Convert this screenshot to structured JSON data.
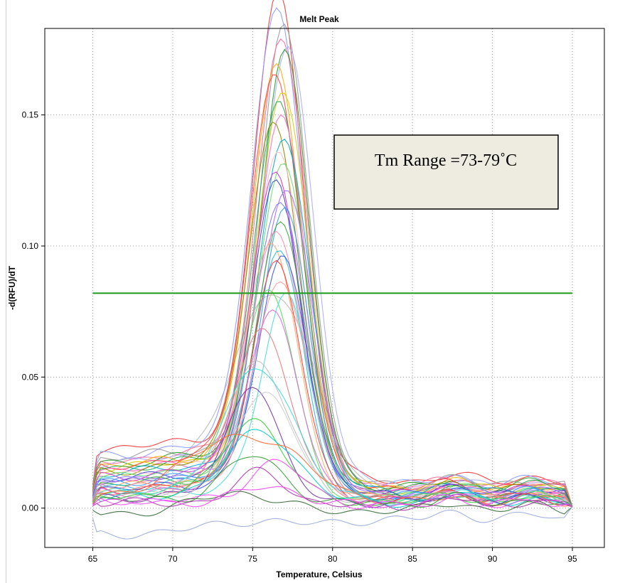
{
  "chart_data": {
    "type": "line",
    "title": "Melt Peak",
    "xlabel": "Temperature, Celsius",
    "ylabel": "-d(RFU)/dT",
    "xlim": [
      62,
      97
    ],
    "ylim": [
      -0.015,
      0.183
    ],
    "x_ticks": [
      {
        "value": 65,
        "label": "65"
      },
      {
        "value": 70,
        "label": "70"
      },
      {
        "value": 75,
        "label": "75"
      },
      {
        "value": 80,
        "label": "80"
      },
      {
        "value": 85,
        "label": "85"
      },
      {
        "value": 90,
        "label": "90"
      },
      {
        "value": 95,
        "label": "95"
      }
    ],
    "y_ticks": [
      {
        "value": 0.0,
        "label": "0.00"
      },
      {
        "value": 0.05,
        "label": "0.05"
      },
      {
        "value": 0.1,
        "label": "0.10"
      },
      {
        "value": 0.15,
        "label": "0.15"
      }
    ],
    "grid": true,
    "threshold": {
      "value": 0.082,
      "x_range": [
        65,
        95
      ],
      "color": "#1a9a1a"
    },
    "annotation": {
      "text": "Tm Range =73-79˚C"
    },
    "background": {
      "color": "#b7b7b7",
      "peak": 76.3,
      "width": 2.5,
      "height": 0.07
    },
    "curves": [
      {
        "peak": 76.6,
        "height": 0.173,
        "width": 1.5,
        "base": 0.022,
        "step": 0.004,
        "color": "#ee3333"
      },
      {
        "peak": 76.5,
        "height": 0.168,
        "width": 1.6,
        "base": 0.02,
        "step": 0.003,
        "color": "#8899ff"
      },
      {
        "peak": 77.0,
        "height": 0.164,
        "width": 1.5,
        "base": 0.019,
        "step": 0.003,
        "color": "#999999"
      },
      {
        "peak": 76.8,
        "height": 0.16,
        "width": 1.55,
        "base": 0.018,
        "step": 0.003,
        "color": "#ff6699"
      },
      {
        "peak": 77.2,
        "height": 0.158,
        "width": 1.6,
        "base": 0.017,
        "step": 0.003,
        "color": "#aaaaff"
      },
      {
        "peak": 77.0,
        "height": 0.155,
        "width": 1.5,
        "base": 0.017,
        "step": 0.003,
        "color": "#229922"
      },
      {
        "peak": 76.5,
        "height": 0.15,
        "width": 1.55,
        "base": 0.016,
        "step": 0.003,
        "color": "#ffaa00"
      },
      {
        "peak": 76.4,
        "height": 0.147,
        "width": 1.6,
        "base": 0.016,
        "step": 0.003,
        "color": "#ff4444"
      },
      {
        "peak": 76.9,
        "height": 0.143,
        "width": 1.55,
        "base": 0.015,
        "step": 0.003,
        "color": "#ddcc00"
      },
      {
        "peak": 76.6,
        "height": 0.139,
        "width": 1.5,
        "base": 0.015,
        "step": 0.003,
        "color": "#22aa55"
      },
      {
        "peak": 76.8,
        "height": 0.133,
        "width": 1.55,
        "base": 0.014,
        "step": 0.003,
        "color": "#ff66cc"
      },
      {
        "peak": 76.3,
        "height": 0.13,
        "width": 1.6,
        "base": 0.014,
        "step": 0.003,
        "color": "#888800"
      },
      {
        "peak": 77.0,
        "height": 0.127,
        "width": 1.55,
        "base": 0.013,
        "step": 0.003,
        "color": "#00aacc"
      },
      {
        "peak": 76.6,
        "height": 0.122,
        "width": 1.5,
        "base": 0.013,
        "step": 0.003,
        "color": "#ffbbbb"
      },
      {
        "peak": 76.9,
        "height": 0.118,
        "width": 1.6,
        "base": 0.012,
        "step": 0.002,
        "color": "#66dd66"
      },
      {
        "peak": 76.4,
        "height": 0.114,
        "width": 1.55,
        "base": 0.012,
        "step": 0.002,
        "color": "#cc33cc"
      },
      {
        "peak": 76.5,
        "height": 0.112,
        "width": 1.5,
        "base": 0.011,
        "step": 0.002,
        "color": "#4444cc"
      },
      {
        "peak": 77.1,
        "height": 0.11,
        "width": 1.6,
        "base": 0.011,
        "step": 0.002,
        "color": "#aa66ff"
      },
      {
        "peak": 76.7,
        "height": 0.106,
        "width": 1.55,
        "base": 0.01,
        "step": 0.002,
        "color": "#7777ee"
      },
      {
        "peak": 77.0,
        "height": 0.102,
        "width": 1.5,
        "base": 0.01,
        "step": 0.002,
        "color": "#3399ff"
      },
      {
        "peak": 76.8,
        "height": 0.098,
        "width": 1.55,
        "base": 0.009,
        "step": 0.002,
        "color": "#33aa33"
      },
      {
        "peak": 76.5,
        "height": 0.095,
        "width": 1.6,
        "base": 0.009,
        "step": 0.002,
        "color": "#ff88aa"
      },
      {
        "peak": 76.2,
        "height": 0.092,
        "width": 1.55,
        "base": 0.008,
        "step": 0.002,
        "color": "#ffaa66"
      },
      {
        "peak": 76.6,
        "height": 0.089,
        "width": 1.5,
        "base": 0.008,
        "step": 0.002,
        "color": "#22bbdd"
      },
      {
        "peak": 76.9,
        "height": 0.087,
        "width": 1.55,
        "base": 0.007,
        "step": 0.002,
        "color": "#3355dd"
      },
      {
        "peak": 76.5,
        "height": 0.085,
        "width": 1.5,
        "base": 0.007,
        "step": 0.002,
        "color": "#ff3333"
      },
      {
        "peak": 76.8,
        "height": 0.079,
        "width": 1.6,
        "base": 0.007,
        "step": 0.002,
        "color": "#ff9999"
      },
      {
        "peak": 76.0,
        "height": 0.077,
        "width": 1.55,
        "base": 0.006,
        "step": 0.002,
        "color": "#55dd55"
      },
      {
        "peak": 77.1,
        "height": 0.075,
        "width": 1.5,
        "base": 0.006,
        "step": 0.001,
        "color": "#44dddd"
      },
      {
        "peak": 76.2,
        "height": 0.068,
        "width": 1.6,
        "base": 0.006,
        "step": 0.001,
        "color": "#dd66dd"
      },
      {
        "peak": 75.6,
        "height": 0.06,
        "width": 1.8,
        "base": 0.006,
        "step": 0.001,
        "color": "#ee7777"
      },
      {
        "peak": 75.3,
        "height": 0.05,
        "width": 1.9,
        "base": 0.005,
        "step": 0.001,
        "color": "#bbbbbb"
      },
      {
        "peak": 75.4,
        "height": 0.047,
        "width": 2.2,
        "base": 0.005,
        "step": 0.001,
        "color": "#33dddd"
      },
      {
        "peak": 75.0,
        "height": 0.043,
        "width": 1.5,
        "base": 0.004,
        "step": 0.001,
        "color": "#7733aa"
      },
      {
        "peak": 75.8,
        "height": 0.038,
        "width": 2.0,
        "base": 0.004,
        "step": 0.001,
        "color": "#cccccc"
      },
      {
        "peak": 75.0,
        "height": 0.029,
        "width": 1.8,
        "base": 0.005,
        "step": 0.0,
        "color": "#33cc33"
      },
      {
        "peak": 75.5,
        "height": 0.025,
        "width": 2.2,
        "base": 0.004,
        "step": 0.0,
        "color": "#00cccc"
      },
      {
        "peak": 74.5,
        "height": 0.024,
        "width": 3.5,
        "base": 0.004,
        "step": 0.0,
        "color": "#ff6633"
      },
      {
        "peak": 75.0,
        "height": 0.017,
        "width": 1.8,
        "base": 0.003,
        "step": 0.0,
        "color": "#339933"
      },
      {
        "peak": 76.5,
        "height": 0.015,
        "width": 1.6,
        "base": 0.003,
        "step": 0.0,
        "color": "#ff44ff"
      },
      {
        "peak": 75.5,
        "height": 0.012,
        "width": 1.5,
        "base": 0.002,
        "step": 0.0,
        "color": "#aa33aa"
      },
      {
        "peak": 74.0,
        "height": 0.008,
        "width": 2.5,
        "base": -0.002,
        "step": 0.0,
        "color": "#336633"
      },
      {
        "peak": 76.0,
        "height": 0.006,
        "width": 2.0,
        "base": 0.002,
        "step": 0.0,
        "color": "#ee44ee"
      },
      {
        "peak": 75.0,
        "height": 0.005,
        "width": 3.0,
        "base": -0.01,
        "step": 0.0,
        "color": "#99aadd"
      }
    ]
  }
}
